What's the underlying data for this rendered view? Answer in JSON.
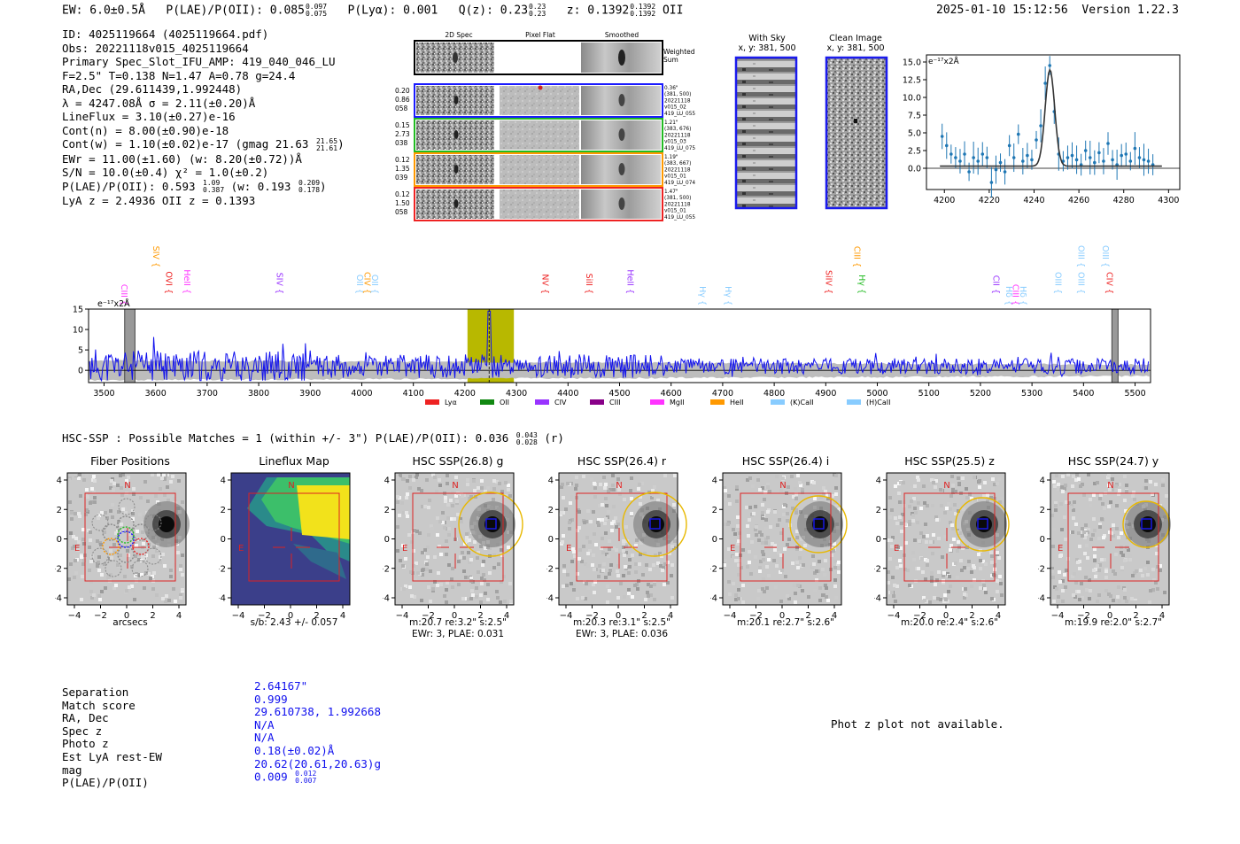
{
  "header": {
    "ew": "EW: 6.0±0.5Å",
    "plae_label": "P(LAE)/P(OII): 0.085",
    "plae_hi": "0.097",
    "plae_lo": "0.075",
    "plya": "P(Lyα): 0.001",
    "qz_label": "Q(z): 0.23",
    "qz_hi": "0.23",
    "qz_lo": "0.23",
    "z_label": "z: 0.1392",
    "z_hi": "0.1392",
    "z_lo": "0.1392",
    "z_line": "OII",
    "datetime": "2025-01-10 15:12:56",
    "version": "Version 1.22.3"
  },
  "info": {
    "id": "ID: 4025119664 (4025119664.pdf)",
    "obs": "Obs: 20221118v015_4025119664",
    "primary": "Primary Spec_Slot_IFU_AMP: 419_040_046_LU",
    "params": "F=2.5\"  T=0.138  N=1.47  A=0.78  g=24.4",
    "radec": "RA,Dec (29.611439,1.992448)",
    "lambda": "λ = 4247.08Å  σ = 2.11(±0.20)Å",
    "lineflux": "LineFlux = 3.10(±0.27)e-16",
    "contn": "Cont(n) = 8.00(±0.90)e-18",
    "contw_label": "Cont(w) = 1.10(±0.02)e-17 (gmag 21.63",
    "contw_hi": "21.65",
    "contw_lo": "21.61",
    "ewr": "EWr = 11.00(±1.60) (w: 8.20(±0.72))Å",
    "sn": "S/N = 10.0(±0.4)  χ² = 1.0(±0.2)",
    "plae_label": "P(LAE)/P(OII): 0.593",
    "plae_hi": "1.09",
    "plae_lo": "0.387",
    "plae_w": "(w: 0.193",
    "plae_w_hi": "0.209",
    "plae_w_lo": "0.178",
    "lyaz": "LyA z = 2.4936  OII z = 0.1393"
  },
  "cutouts": {
    "col_2d": "2D Spec",
    "col_flat": "Pixel Flat",
    "col_smooth": "Smoothed",
    "weighted_1": "Weighted",
    "weighted_2": "Sum",
    "rows": [
      {
        "left": [
          "0.20",
          "0.86",
          "058"
        ],
        "right": [
          "0.36\"",
          "(381, 500)",
          "20221118",
          "v015_02",
          "419_LU_055"
        ],
        "color": "#1a1aff"
      },
      {
        "left": [
          "0.15",
          "2.73",
          "038"
        ],
        "right": [
          "1.21\"",
          "(383, 676)",
          "20221118",
          "v015_03",
          "419_LU_075"
        ],
        "color": "#22bb22"
      },
      {
        "left": [
          "0.12",
          "1.35",
          "039"
        ],
        "right": [
          "1.19\"",
          "(383, 667)",
          "20221118",
          "v015_01",
          "419_LU_074"
        ],
        "color": "#ff9900"
      },
      {
        "left": [
          "0.12",
          "1.50",
          "058"
        ],
        "right": [
          "1.47\"",
          "(381, 500)",
          "20221118",
          "v015_01",
          "419_LU_055"
        ],
        "color": "#ee2222"
      }
    ]
  },
  "sky": {
    "with_sky_title": "With Sky",
    "with_sky_xy": "x, y: 381, 500",
    "clean_title": "Clean Image",
    "clean_xy": "x, y: 381, 500"
  },
  "zoom_chart": {
    "ylabel": "e⁻¹⁷x2Å"
  },
  "chart_data": [
    {
      "type": "line",
      "title": "Emission line zoom",
      "xlabel": "",
      "ylabel": "e-17 x2Å",
      "xlim": [
        4192,
        4305
      ],
      "ylim": [
        -3,
        16
      ],
      "x_ticks": [
        4200,
        4220,
        4240,
        4260,
        4280,
        4300
      ],
      "y_ticks": [
        0.0,
        2.5,
        5.0,
        7.5,
        10.0,
        12.5,
        15.0
      ],
      "fit": {
        "center": 4247.08,
        "sigma": 2.11,
        "peak": 13.6,
        "continuum": 0.3
      },
      "points_x": [
        4199,
        4201,
        4203,
        4205,
        4207,
        4209,
        4211,
        4213,
        4215,
        4217,
        4219,
        4221,
        4223,
        4225,
        4227,
        4229,
        4231,
        4233,
        4235,
        4237,
        4239,
        4241,
        4243,
        4245,
        4247,
        4249,
        4251,
        4253,
        4255,
        4257,
        4259,
        4261,
        4263,
        4265,
        4267,
        4269,
        4271,
        4273,
        4275,
        4277,
        4279,
        4281,
        4283,
        4285,
        4287,
        4289,
        4291,
        4293
      ],
      "points_y": [
        4.5,
        3.2,
        2.0,
        1.5,
        1.0,
        2.0,
        -0.5,
        1.5,
        1.0,
        2.0,
        1.5,
        -2.0,
        -0.2,
        0.8,
        -0.5,
        3.2,
        1.5,
        4.8,
        1.0,
        1.8,
        1.2,
        4.0,
        6.0,
        12.0,
        14.5,
        8.0,
        2.0,
        1.0,
        1.5,
        1.8,
        1.2,
        0.5,
        2.5,
        1.5,
        0.8,
        2.2,
        1.0,
        3.5,
        1.2,
        0.5,
        1.8,
        2.0,
        1.0,
        2.8,
        1.5,
        1.2,
        1.0,
        0.5
      ]
    },
    {
      "type": "line",
      "title": "Full spectrum",
      "xlabel": "",
      "ylabel": "e-17 x2Å",
      "xlim": [
        3470,
        5530
      ],
      "ylim": [
        -3,
        15
      ],
      "x_ticks": [
        3500,
        3600,
        3700,
        3800,
        3900,
        4000,
        4100,
        4200,
        4300,
        4400,
        4500,
        4600,
        4700,
        4800,
        4900,
        5000,
        5100,
        5200,
        5300,
        5400,
        5500
      ],
      "y_ticks": [
        0,
        5,
        10,
        15
      ],
      "highlight_range": [
        4205,
        4295
      ],
      "emission_peak": {
        "x": 4247,
        "y": 14.5
      },
      "line_labels": [
        {
          "name": "CIII",
          "x": 3528,
          "color": "#ff33ff",
          "row": 2
        },
        {
          "name": "SIV",
          "x": 3590,
          "color": "#ff9900",
          "row": 0
        },
        {
          "name": "OVI",
          "x": 3615,
          "color": "#ee2222",
          "row": 1
        },
        {
          "name": "HeII",
          "x": 3650,
          "color": "#ff33ff",
          "row": 1
        },
        {
          "name": "SIV",
          "x": 3830,
          "color": "#9933ff",
          "row": 1
        },
        {
          "name": "OII",
          "x": 3985,
          "color": "#88ccff",
          "row": 1
        },
        {
          "name": "CIV",
          "x": 4000,
          "color": "#ff9900",
          "row": 1
        },
        {
          "name": "OII",
          "x": 4015,
          "color": "#88ccff",
          "row": 1
        },
        {
          "name": "NV",
          "x": 4345,
          "color": "#ee2222",
          "row": 1
        },
        {
          "name": "SiII",
          "x": 4430,
          "color": "#ee2222",
          "row": 1
        },
        {
          "name": "HeII",
          "x": 4510,
          "color": "#9933ff",
          "row": 1
        },
        {
          "name": "Hγ",
          "x": 4650,
          "color": "#88ccff",
          "row": 2
        },
        {
          "name": "Hγ",
          "x": 4700,
          "color": "#88ccff",
          "row": 2
        },
        {
          "name": "SiIV",
          "x": 4895,
          "color": "#ee2222",
          "row": 1
        },
        {
          "name": "CIII",
          "x": 4950,
          "color": "#ff9900",
          "row": 0
        },
        {
          "name": "Hγ",
          "x": 4960,
          "color": "#22bb22",
          "row": 1
        },
        {
          "name": "CII",
          "x": 5220,
          "color": "#9933ff",
          "row": 1
        },
        {
          "name": "Hδ",
          "x": 5245,
          "color": "#88ccff",
          "row": 2
        },
        {
          "name": "CIII",
          "x": 5258,
          "color": "#ff33ff",
          "row": 2
        },
        {
          "name": "Hδ",
          "x": 5272,
          "color": "#88ccff",
          "row": 2
        },
        {
          "name": "OIII",
          "x": 5340,
          "color": "#88ccff",
          "row": 1
        },
        {
          "name": "OIII",
          "x": 5385,
          "color": "#88ccff",
          "row": 0
        },
        {
          "name": "OIII",
          "x": 5385,
          "color": "#88ccff",
          "row": 1
        },
        {
          "name": "OIII",
          "x": 5432,
          "color": "#88ccff",
          "row": 0
        },
        {
          "name": "CIV",
          "x": 5440,
          "color": "#ee2222",
          "row": 1
        }
      ],
      "legend": [
        {
          "name": "Lyα",
          "color": "#ee2222"
        },
        {
          "name": "OII",
          "color": "#118811"
        },
        {
          "name": "CIV",
          "color": "#9933ff"
        },
        {
          "name": "CIII",
          "color": "#880088"
        },
        {
          "name": "MgII",
          "color": "#ff33ff"
        },
        {
          "name": "HeII",
          "color": "#ff9900"
        },
        {
          "name": "(K)CaII",
          "color": "#88ccff"
        },
        {
          "name": "(H)CaII",
          "color": "#88ccff"
        }
      ]
    }
  ],
  "hsc": {
    "summary_label": "HSC-SSP : Possible Matches = 1 (within +/- 3\")  P(LAE)/P(OII): 0.036",
    "summary_hi": "0.043",
    "summary_lo": "0.028",
    "summary_band": "(r)",
    "axis_ticks_x": [
      "−4",
      "−2",
      "0",
      "2",
      "4"
    ],
    "axis_ticks_y": [
      "4",
      "2",
      "0",
      "−2",
      "−4"
    ],
    "north": "N",
    "east": "E",
    "panels": [
      {
        "title": "Fiber Positions",
        "cap1": "arcsecs",
        "cap2": ""
      },
      {
        "title": "Lineflux Map",
        "cap1": "s/b: 2.43 +/- 0.057",
        "cap2": ""
      },
      {
        "title": "HSC SSP(26.8) g",
        "cap1": "m:20.7  re:3.2\"  s:2.5\"",
        "cap2": "EWr: 3, PLAE: 0.031"
      },
      {
        "title": "HSC SSP(26.4) r",
        "cap1": "m:20.3  re:3.1\"  s:2.5\"",
        "cap2": "EWr: 3, PLAE: 0.036"
      },
      {
        "title": "HSC SSP(26.4) i",
        "cap1": "m:20.1  re:2.7\"  s:2.6\"",
        "cap2": ""
      },
      {
        "title": "HSC SSP(25.5) z",
        "cap1": "m:20.0  re:2.4\"  s:2.6\"",
        "cap2": ""
      },
      {
        "title": "HSC SSP(24.7) y",
        "cap1": "m:19.9  re:2.0\"  s:2.7\"",
        "cap2": ""
      }
    ]
  },
  "match": {
    "labels": [
      "Separation",
      "Match score",
      "RA, Dec",
      "Spec z",
      "Photo z",
      "Est LyA rest-EW",
      "mag",
      "P(LAE)/P(OII)"
    ],
    "values": [
      "2.64167\"",
      "0.999",
      "29.610738, 1.992668",
      "N/A",
      "N/A",
      "0.18(±0.02)Å",
      "20.62(20.61,20.63)g"
    ],
    "plae_val": "0.009",
    "plae_hi": "0.012",
    "plae_lo": "0.007",
    "photz_note": "Phot z plot not available."
  }
}
